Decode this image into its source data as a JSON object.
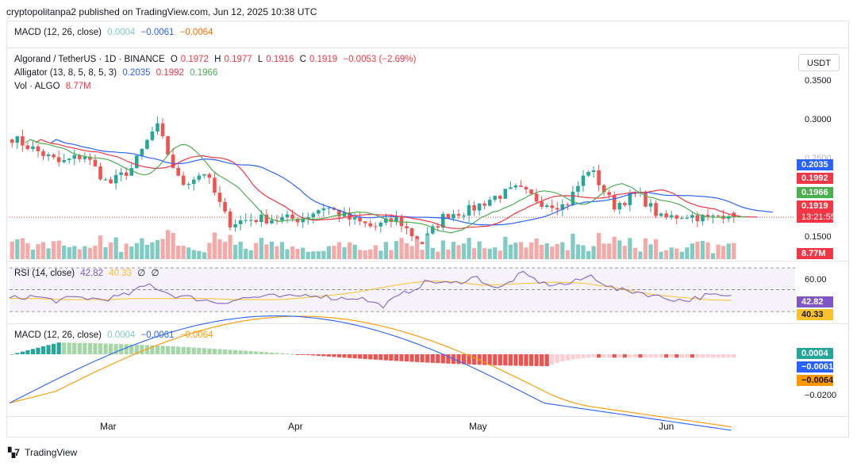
{
  "publisher": "cryptopolitanpa2 published on TradingView.com, Jun 12, 2025 10:38 UTC",
  "collapsed_macd": {
    "label": "MACD (12, 26, close)",
    "v1": "0.0004",
    "v2": "−0.0061",
    "v3": "−0.0064"
  },
  "main": {
    "symbol": "Algorand / TetherUS · 1D · BINANCE",
    "o_label": "O",
    "o": "0.1972",
    "h_label": "H",
    "h": "0.1977",
    "l_label": "L",
    "l": "0.1916",
    "c_label": "C",
    "c": "0.1919",
    "change": "−0.0053 (−2.69%)",
    "alligator_label": "Alligator (13, 8, 5, 8, 5, 3)",
    "alligator_jaw": "0.2035",
    "alligator_teeth": "0.1992",
    "alligator_lips": "0.1966",
    "vol_label": "Vol · ALGO",
    "vol_value": "8.77M",
    "currency": "USDT",
    "axis_ticks": [
      "0.3500",
      "0.3000",
      "0.2500",
      "0.1500"
    ],
    "tags": {
      "jaw": "0.2035",
      "teeth": "0.1992",
      "lips": "0.1966",
      "price": "0.1919",
      "countdown": "13:21:55",
      "volume": "8.77M"
    }
  },
  "rsi": {
    "label": "RSI (14, close)",
    "value": "42.82",
    "ma": "40.33",
    "extra1": "∅",
    "extra2": "∅",
    "axis_tick": "60.00",
    "tags": {
      "rsi": "42.82",
      "ma": "40.33"
    }
  },
  "macd": {
    "label": "MACD (12, 26, close)",
    "hist": "0.0004",
    "macd": "−0.0061",
    "signal": "−0.0064",
    "axis_tick": "−0.0200",
    "tags": {
      "hist": "0.0004",
      "macd": "−0.0061",
      "signal": "−0.0064"
    }
  },
  "x_labels": [
    "Mar",
    "Apr",
    "May",
    "Jun"
  ],
  "footer": "TradingView",
  "colors": {
    "up": "#26a69a",
    "down": "#ef5350",
    "jaw": "#2962ff",
    "teeth": "#f23645",
    "lips": "#4caf50",
    "rsi": "#7e57c2",
    "rsi_ma": "#fbc02d",
    "macd": "#2962ff",
    "signal": "#ff9800"
  },
  "chart_data": {
    "type": "candlestick",
    "pair": "ALGO/USDT",
    "interval": "1D",
    "last_candle": {
      "open": 0.1972,
      "high": 0.1977,
      "low": 0.1916,
      "close": 0.1919
    },
    "y_range": [
      0.14,
      0.36
    ],
    "x_months": [
      "Mar",
      "Apr",
      "May",
      "Jun"
    ],
    "close_path": [
      0.285,
      0.27,
      0.255,
      0.265,
      0.23,
      0.25,
      0.3,
      0.23,
      0.245,
      0.185,
      0.19,
      0.19,
      0.19,
      0.205,
      0.19,
      0.18,
      0.19,
      0.16,
      0.195,
      0.2,
      0.215,
      0.225,
      0.21,
      0.205,
      0.25,
      0.205,
      0.22,
      0.19,
      0.195,
      0.19,
      0.2
    ],
    "rsi_range": [
      25,
      70
    ],
    "rsi_path": [
      42,
      44,
      40,
      43,
      41,
      45,
      55,
      45,
      42,
      38,
      42,
      44,
      43,
      46,
      42,
      43,
      35,
      47,
      58,
      55,
      62,
      50,
      65,
      55,
      55,
      63,
      50,
      48,
      43,
      40,
      45,
      43
    ],
    "rsi_ma_path": [
      42,
      42,
      41,
      41,
      41,
      42,
      42,
      42,
      42,
      41,
      41,
      41,
      43,
      45,
      48,
      52,
      56,
      58,
      57,
      54,
      55,
      56,
      57,
      56,
      53,
      49,
      45,
      43,
      41,
      40
    ]
  }
}
